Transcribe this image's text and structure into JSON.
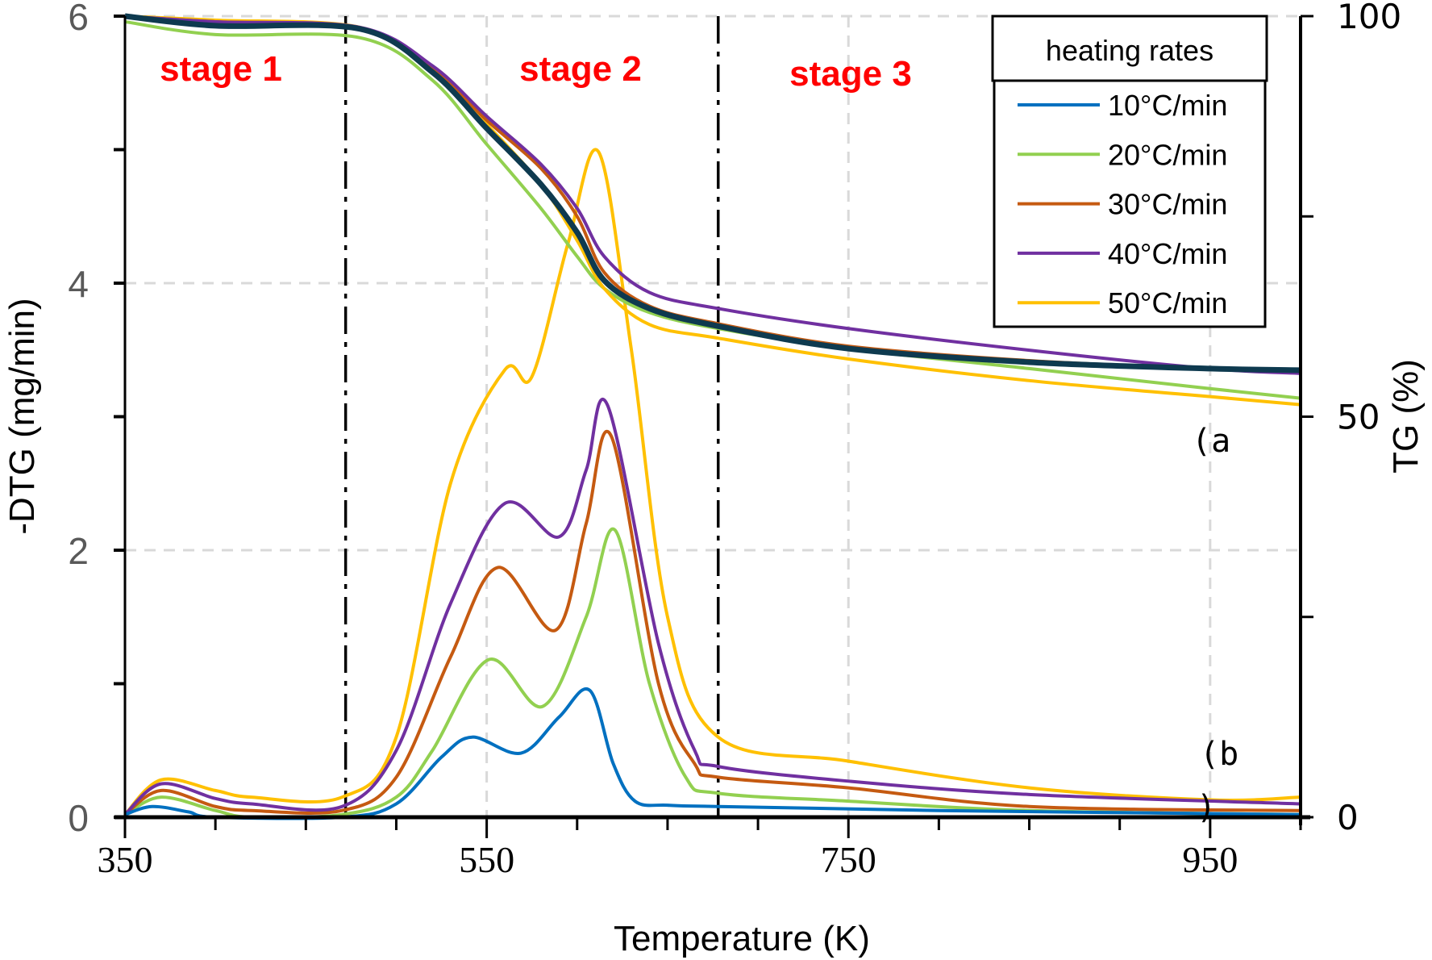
{
  "chart_data": {
    "type": "line",
    "xlabel": "Temperature (K)",
    "ylabel": "-DTG (mg/min)",
    "y2label": "TG (%)",
    "xlim": [
      350,
      1000
    ],
    "ylim": [
      0,
      6
    ],
    "y2lim": [
      0,
      100
    ],
    "xticks": [
      "350",
      "550",
      "750",
      "950"
    ],
    "yticks": [
      "0",
      "2",
      "4",
      "6"
    ],
    "y2ticks": [
      "0",
      "50",
      "100"
    ],
    "grid": true,
    "legend": {
      "title": "heating rates",
      "placement": "top-right"
    },
    "stage_labels": [
      "stage 1",
      "stage 2",
      "stage 3"
    ],
    "stage_boundaries_K": [
      472,
      678
    ],
    "annotations": {
      "a": "(a",
      "b": "(b",
      "b_close": ")"
    },
    "series": [
      {
        "name": "10°C/min",
        "color": "#0070C0",
        "tg_color": "#0E3A4F",
        "dtg": [
          [
            350,
            0.02
          ],
          [
            365,
            0.08
          ],
          [
            385,
            0.04
          ],
          [
            400,
            0
          ],
          [
            470,
            0
          ],
          [
            500,
            0.1
          ],
          [
            525,
            0.45
          ],
          [
            542,
            0.6
          ],
          [
            569,
            0.48
          ],
          [
            590,
            0.75
          ],
          [
            607,
            0.95
          ],
          [
            620,
            0.4
          ],
          [
            632,
            0.12
          ],
          [
            650,
            0.09
          ],
          [
            678,
            0.08
          ],
          [
            800,
            0.05
          ],
          [
            1000,
            0.02
          ]
        ],
        "tg": [
          [
            350,
            100
          ],
          [
            400,
            98.8
          ],
          [
            480,
            98.4
          ],
          [
            520,
            93
          ],
          [
            550,
            86
          ],
          [
            580,
            79
          ],
          [
            600,
            73
          ],
          [
            615,
            67
          ],
          [
            640,
            63.5
          ],
          [
            678,
            61.3
          ],
          [
            750,
            58.5
          ],
          [
            850,
            56.8
          ],
          [
            950,
            56
          ],
          [
            1000,
            55.8
          ]
        ]
      },
      {
        "name": "20°C/min",
        "color": "#92D050",
        "dtg": [
          [
            350,
            0.02
          ],
          [
            370,
            0.15
          ],
          [
            400,
            0.05
          ],
          [
            420,
            0
          ],
          [
            470,
            0.02
          ],
          [
            500,
            0.15
          ],
          [
            520,
            0.5
          ],
          [
            551,
            1.18
          ],
          [
            581,
            0.83
          ],
          [
            605,
            1.5
          ],
          [
            621,
            2.15
          ],
          [
            640,
            1.0
          ],
          [
            660,
            0.3
          ],
          [
            678,
            0.18
          ],
          [
            750,
            0.12
          ],
          [
            850,
            0.05
          ],
          [
            1000,
            0.02
          ]
        ],
        "tg": [
          [
            350,
            99.3
          ],
          [
            400,
            97.7
          ],
          [
            480,
            97.3
          ],
          [
            520,
            92
          ],
          [
            550,
            84
          ],
          [
            580,
            76
          ],
          [
            600,
            70
          ],
          [
            615,
            66
          ],
          [
            640,
            63
          ],
          [
            678,
            61
          ],
          [
            750,
            58.5
          ],
          [
            850,
            56
          ],
          [
            950,
            53.5
          ],
          [
            1000,
            52.3
          ]
        ]
      },
      {
        "name": "30°C/min",
        "color": "#C55A11",
        "dtg": [
          [
            350,
            0.02
          ],
          [
            370,
            0.2
          ],
          [
            400,
            0.08
          ],
          [
            420,
            0.05
          ],
          [
            470,
            0.05
          ],
          [
            500,
            0.3
          ],
          [
            530,
            1.2
          ],
          [
            556,
            1.87
          ],
          [
            588,
            1.4
          ],
          [
            605,
            2.2
          ],
          [
            619,
            2.85
          ],
          [
            645,
            1.0
          ],
          [
            665,
            0.4
          ],
          [
            678,
            0.3
          ],
          [
            750,
            0.22
          ],
          [
            850,
            0.08
          ],
          [
            1000,
            0.05
          ]
        ],
        "tg": [
          [
            350,
            100
          ],
          [
            400,
            99.3
          ],
          [
            480,
            98.5
          ],
          [
            520,
            93.5
          ],
          [
            550,
            87
          ],
          [
            580,
            81
          ],
          [
            600,
            75
          ],
          [
            615,
            68
          ],
          [
            640,
            63.8
          ],
          [
            678,
            61.6
          ],
          [
            750,
            58.8
          ],
          [
            850,
            57
          ],
          [
            950,
            56
          ],
          [
            1000,
            55.9
          ]
        ]
      },
      {
        "name": "40°C/min",
        "color": "#7030A0",
        "dtg": [
          [
            350,
            0.02
          ],
          [
            370,
            0.25
          ],
          [
            400,
            0.14
          ],
          [
            420,
            0.1
          ],
          [
            470,
            0.08
          ],
          [
            500,
            0.5
          ],
          [
            530,
            1.6
          ],
          [
            560,
            2.35
          ],
          [
            590,
            2.1
          ],
          [
            605,
            2.6
          ],
          [
            617,
            3.08
          ],
          [
            645,
            1.3
          ],
          [
            665,
            0.5
          ],
          [
            678,
            0.38
          ],
          [
            750,
            0.27
          ],
          [
            850,
            0.17
          ],
          [
            1000,
            0.1
          ]
        ],
        "tg": [
          [
            350,
            100
          ],
          [
            400,
            99.3
          ],
          [
            480,
            98.6
          ],
          [
            520,
            93.8
          ],
          [
            550,
            87.5
          ],
          [
            580,
            81.5
          ],
          [
            600,
            76
          ],
          [
            615,
            70
          ],
          [
            640,
            65.5
          ],
          [
            678,
            63.5
          ],
          [
            750,
            61
          ],
          [
            850,
            58.3
          ],
          [
            950,
            56
          ],
          [
            1000,
            55.4
          ]
        ]
      },
      {
        "name": "50°C/min",
        "color": "#FFC000",
        "dtg": [
          [
            350,
            0.02
          ],
          [
            370,
            0.28
          ],
          [
            400,
            0.2
          ],
          [
            420,
            0.15
          ],
          [
            470,
            0.15
          ],
          [
            500,
            0.6
          ],
          [
            530,
            2.5
          ],
          [
            560,
            3.35
          ],
          [
            575,
            3.3
          ],
          [
            595,
            4.3
          ],
          [
            612,
            4.98
          ],
          [
            630,
            3.5
          ],
          [
            650,
            1.5
          ],
          [
            678,
            0.6
          ],
          [
            750,
            0.42
          ],
          [
            850,
            0.22
          ],
          [
            950,
            0.13
          ],
          [
            1000,
            0.15
          ]
        ],
        "tg": [
          [
            350,
            100
          ],
          [
            400,
            99.5
          ],
          [
            480,
            98.6
          ],
          [
            520,
            93.5
          ],
          [
            550,
            86.5
          ],
          [
            580,
            79
          ],
          [
            600,
            72
          ],
          [
            615,
            66
          ],
          [
            640,
            61.5
          ],
          [
            678,
            59.8
          ],
          [
            750,
            57.2
          ],
          [
            850,
            54.5
          ],
          [
            950,
            52.5
          ],
          [
            1000,
            51.5
          ]
        ]
      }
    ]
  }
}
